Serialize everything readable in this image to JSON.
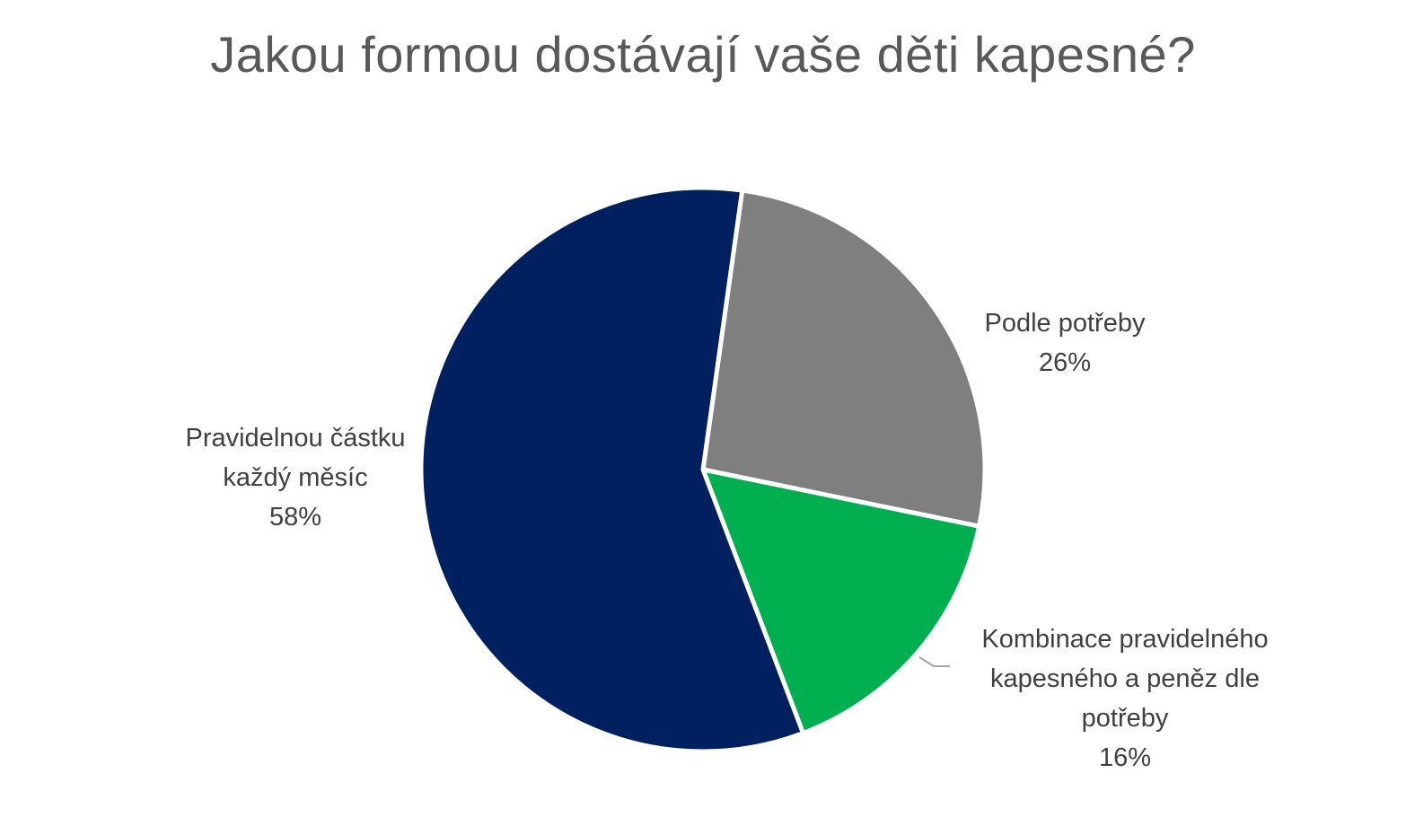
{
  "chart_data": {
    "type": "pie",
    "title": "Jakou formou dostávají vaše děti kapesné?",
    "slices": [
      {
        "name": "Podle potřeby",
        "label_lines": [
          "Podle potřeby"
        ],
        "value": 26,
        "value_label": "26%",
        "color": "#7F7F7F"
      },
      {
        "name": "Kombinace pravidelného kapesného a peněz dle potřeby",
        "label_lines": [
          "Kombinace pravidelného",
          "kapesného a peněz dle",
          "potřeby"
        ],
        "value": 16,
        "value_label": "16%",
        "color": "#00B050"
      },
      {
        "name": "Pravidelnou částku každý měsíc",
        "label_lines": [
          "Pravidelnou částku",
          "každý měsíc"
        ],
        "value": 58,
        "value_label": "58%",
        "color": "#002060"
      }
    ],
    "legend": "none",
    "data_labels": "category name and percentage"
  }
}
